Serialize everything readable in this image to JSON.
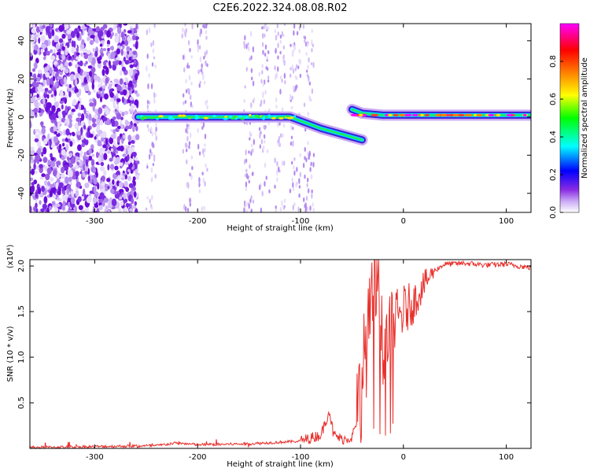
{
  "title": "C2E6.2022.324.08.08.R02",
  "chart_data": [
    {
      "type": "heatmap",
      "xlabel": "Height of straight line (km)",
      "ylabel": "Frequency (Hz)",
      "xlim": [
        -363,
        124
      ],
      "ylim": [
        -50,
        49
      ],
      "x_ticks": [
        -300,
        -200,
        -100,
        0,
        100
      ],
      "y_ticks": [
        -40,
        -20,
        0,
        20,
        40
      ],
      "colorbar": {
        "label": "Normalized spectral amplitude",
        "range": [
          0,
          1
        ],
        "ticks": [
          "0.0",
          "0.2",
          "0.4",
          "0.6",
          "0.8"
        ],
        "colors": [
          "#ffffff",
          "#8a2be2",
          "#0000ff",
          "#00ffff",
          "#00ff00",
          "#ffff00",
          "#ff8000",
          "#ff0000",
          "#ff00ff"
        ]
      },
      "carrier_track": [
        {
          "x": -258,
          "y": 0
        },
        {
          "x": -200,
          "y": 0
        },
        {
          "x": -150,
          "y": 0
        },
        {
          "x": -110,
          "y": 0
        },
        {
          "x": -95,
          "y": -3
        },
        {
          "x": -80,
          "y": -6
        },
        {
          "x": -60,
          "y": -9
        },
        {
          "x": -40,
          "y": -12
        },
        {
          "x": -50,
          "y": 4
        },
        {
          "x": -40,
          "y": 2
        },
        {
          "x": -20,
          "y": 1
        },
        {
          "x": 0,
          "y": 1
        },
        {
          "x": 50,
          "y": 1
        },
        {
          "x": 100,
          "y": 1
        },
        {
          "x": 124,
          "y": 1
        }
      ],
      "noise_region_xlim": [
        -363,
        -258
      ]
    },
    {
      "type": "line",
      "xlabel": "Height of straight line (km)",
      "ylabel": "SNR (10 * v/v)",
      "y_multiplier": "(x10⁴)",
      "xlim": [
        -363,
        124
      ],
      "ylim": [
        0,
        2.07
      ],
      "x_ticks": [
        -300,
        -200,
        -100,
        0,
        100
      ],
      "y_ticks": [
        "0.5",
        "1.0",
        "1.5",
        "2.0"
      ],
      "line_color": "#e8302c",
      "series": [
        {
          "x": [
            -363,
            -300,
            -240,
            -220,
            -200,
            -150,
            -100,
            -80,
            -72,
            -68,
            -60,
            -50,
            -45,
            -40,
            -35,
            -30,
            -25,
            -20,
            -15,
            -10,
            0,
            10,
            20,
            30,
            40,
            60,
            80,
            100,
            124
          ],
          "y": [
            0.01,
            0.02,
            0.03,
            0.06,
            0.04,
            0.05,
            0.08,
            0.15,
            0.42,
            0.15,
            0.1,
            0.12,
            0.3,
            0.8,
            1.2,
            1.6,
            1.85,
            1.1,
            1.4,
            1.35,
            1.5,
            1.6,
            1.8,
            1.95,
            2.02,
            2.03,
            2.01,
            2.02,
            1.98
          ]
        }
      ]
    }
  ]
}
